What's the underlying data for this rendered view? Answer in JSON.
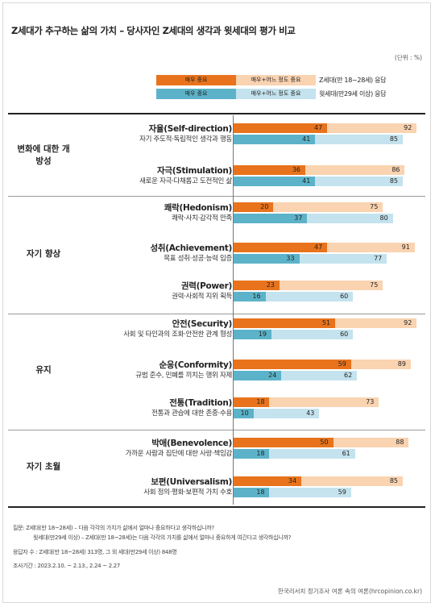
{
  "title": "Z세대가 추구하는 삶의 가치 – 당사자인 Z세대의 생각과 윗세대의 평가 비교",
  "unit": "(단위 : %)",
  "legend": {
    "very_label": "매우 중요",
    "somewhat_label": "매우+어느 정도 중요",
    "genz_label": "Z세대(만 18~28세) 응답",
    "older_label": "윗세대(만29세 이상) 응답"
  },
  "colors": {
    "genz_very": "#e8731c",
    "genz_total": "#fad3b1",
    "older_very": "#5cb3c9",
    "older_total": "#c4e3ee"
  },
  "categories": [
    {
      "label": "변화에 대한 개방성",
      "value_indices": [
        0,
        1
      ]
    },
    {
      "label": "자기 향상",
      "value_indices": [
        2,
        3,
        4
      ]
    },
    {
      "label": "유지",
      "value_indices": [
        5,
        6,
        7
      ]
    },
    {
      "label": "자기 초월",
      "value_indices": [
        8,
        9
      ]
    }
  ],
  "chart_data": {
    "type": "bar",
    "orientation": "horizontal",
    "title": "Z세대가 추구하는 삶의 가치 – 당사자인 Z세대의 생각과 윗세대의 평가 비교",
    "categories": [
      "자율(Self-direction)",
      "자극(Stimulation)",
      "쾌락(Hedonism)",
      "성취(Achievement)",
      "권력(Power)",
      "안전(Security)",
      "순응(Conformity)",
      "전통(Tradition)",
      "박애(Benevolence)",
      "보편(Universalism)"
    ],
    "descriptions": [
      "자기 주도적·독립적인 생각과 행동",
      "새로운 자극·다채롭고 도전적인 삶",
      "쾌락·사치·감각적 만족",
      "목표 성취·성공·능력 입증",
      "권력·사회적 지위 획득",
      "사회 및 타인과의 조화·안전한 관계 형성",
      "규범 준수, 민폐를 끼치는 행위 자제",
      "전통과 관습에 대한 존중·수용",
      "가까운 사람과 집단에 대한 사랑·책임감",
      "사회 정의·평화·보편적 가치 수호"
    ],
    "series": [
      {
        "name": "Z세대(만 18~28세) 응답 – 매우 중요",
        "values": [
          47,
          36,
          20,
          47,
          23,
          51,
          59,
          18,
          50,
          34
        ]
      },
      {
        "name": "Z세대(만 18~28세) 응답 – 매우+어느 정도 중요",
        "values": [
          92,
          86,
          75,
          91,
          75,
          92,
          89,
          73,
          88,
          85
        ]
      },
      {
        "name": "윗세대(만29세 이상) 응답 – 매우 중요",
        "values": [
          41,
          41,
          37,
          33,
          16,
          19,
          24,
          10,
          18,
          18
        ]
      },
      {
        "name": "윗세대(만29세 이상) 응답 – 매우+어느 정도 중요",
        "values": [
          85,
          85,
          80,
          77,
          60,
          60,
          62,
          43,
          61,
          59
        ]
      }
    ],
    "xlim": [
      0,
      100
    ]
  },
  "notes": {
    "question_1": "질문:  Z세대(만 18~28세) – 다음 각각의 가치가 삶에서 얼마나 중요하다고 생각하십니까?",
    "question_2": "윗세대(만29세 이상) – Z세대(만 18~28세)는 다음 각각의 가치를 삶에서 얼마나 중요하게 여긴다고 생각하십니까?",
    "respondents": "응답자 수 : Z세대(만 18~28세) 313명, 그 외 세대(만29세 이상) 848명",
    "period": "조사기간 : 2023.2.10. ~ 2.13., 2.24 ~ 2.27"
  },
  "source": "한국리서치 정기조사 여론 속의 여론(hrcopinion.co.kr)"
}
